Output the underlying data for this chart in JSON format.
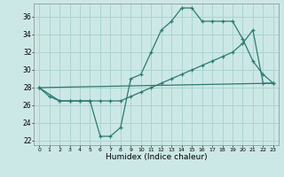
{
  "xlabel": "Humidex (Indice chaleur)",
  "background_color": "#cce8e6",
  "grid_color": "#aad4d0",
  "line_color": "#2d7a72",
  "xlim": [
    -0.5,
    23.5
  ],
  "ylim": [
    21.5,
    37.5
  ],
  "xticks": [
    0,
    1,
    2,
    3,
    4,
    5,
    6,
    7,
    8,
    9,
    10,
    11,
    12,
    13,
    14,
    15,
    16,
    17,
    18,
    19,
    20,
    21,
    22,
    23
  ],
  "yticks": [
    22,
    24,
    26,
    28,
    30,
    32,
    34,
    36
  ],
  "series": [
    {
      "x": [
        0,
        1,
        2,
        3,
        4,
        5,
        6,
        7,
        8,
        9,
        10,
        11,
        12,
        13,
        14,
        15,
        16,
        17,
        18,
        19,
        20,
        21,
        22,
        23
      ],
      "y": [
        28,
        27,
        26.5,
        26.5,
        26.5,
        26.5,
        22.5,
        22.5,
        23.5,
        29,
        29.5,
        32,
        34.5,
        35.5,
        37,
        37,
        35.5,
        35.5,
        35.5,
        35.5,
        33.5,
        31,
        29.5,
        28.5
      ],
      "marker": true
    },
    {
      "x": [
        0,
        2,
        3,
        4,
        5,
        6,
        7,
        8,
        9,
        10,
        11,
        12,
        13,
        14,
        15,
        16,
        17,
        18,
        19,
        20,
        21,
        22,
        23
      ],
      "y": [
        28,
        26.5,
        26.5,
        26.5,
        26.5,
        26.5,
        26.5,
        26.5,
        27,
        27.5,
        28,
        28.5,
        29,
        29.5,
        30,
        30.5,
        31,
        31.5,
        32,
        33,
        34.5,
        28.5,
        28.5
      ],
      "marker": true
    },
    {
      "x": [
        0,
        23
      ],
      "y": [
        28,
        28.5
      ],
      "marker": false
    }
  ]
}
